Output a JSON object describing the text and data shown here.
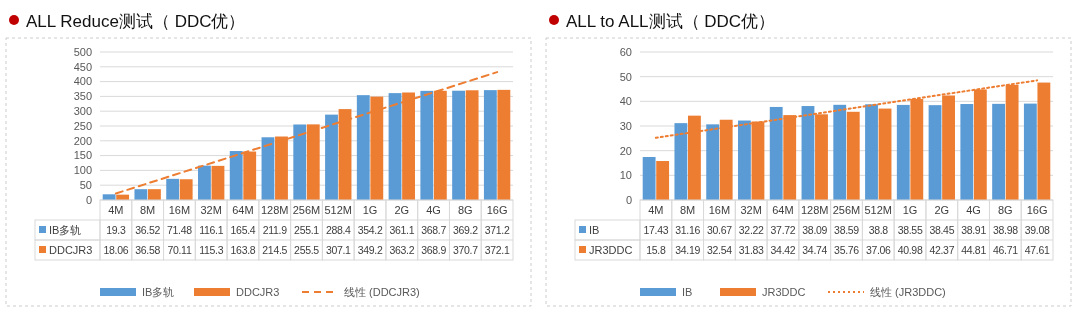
{
  "chart_data": [
    {
      "type": "bar",
      "title": "ALL Reduce测试（ DDC优）",
      "categories": [
        "4M",
        "8M",
        "16M",
        "32M",
        "64M",
        "128M",
        "256M",
        "512M",
        "1G",
        "2G",
        "4G",
        "8G",
        "16G"
      ],
      "series": [
        {
          "name": "IB多轨",
          "color": "#5b9bd5",
          "values": [
            19.3,
            36.52,
            71.48,
            116.1,
            165.4,
            211.9,
            255.1,
            288.4,
            354.2,
            361.1,
            368.7,
            369.2,
            371.2
          ],
          "value_labels": [
            "19.3",
            "36.52",
            "71.48",
            "116.1",
            "165.4",
            "211.9",
            "255.1",
            "288.4",
            "354.2",
            "361.1",
            "368.7",
            "369.2",
            "371.2"
          ]
        },
        {
          "name": "DDCJR3",
          "color": "#ed7d31",
          "values": [
            18.06,
            36.58,
            70.11,
            115.3,
            163.8,
            214.5,
            255.5,
            307.1,
            349.2,
            363.2,
            368.9,
            370.7,
            372.1
          ],
          "value_labels": [
            "18.06",
            "36.58",
            "70.11",
            "115.3",
            "163.8",
            "214.5",
            "255.5",
            "307.1",
            "349.2",
            "363.2",
            "368.9",
            "370.7",
            "372.1"
          ]
        },
        {
          "name": "线性 (DDCJR3)",
          "type": "line",
          "color": "#ed7d31",
          "line_style": "dashed",
          "x": [
            "4M",
            "16G"
          ],
          "values": [
            22,
            432
          ]
        }
      ],
      "ylim": [
        0,
        500
      ],
      "yticks": [
        0,
        50,
        100,
        150,
        200,
        250,
        300,
        350,
        400,
        450,
        500
      ],
      "grid": "y",
      "legend": "bottom"
    },
    {
      "type": "bar",
      "title": "ALL to ALL测试（ DDC优）",
      "categories": [
        "4M",
        "8M",
        "16M",
        "32M",
        "64M",
        "128M",
        "256M",
        "512M",
        "1G",
        "2G",
        "4G",
        "8G",
        "16G"
      ],
      "series": [
        {
          "name": "IB",
          "color": "#5b9bd5",
          "values": [
            17.43,
            31.16,
            30.67,
            32.22,
            37.72,
            38.09,
            38.59,
            38.8,
            38.55,
            38.45,
            38.91,
            38.98,
            39.08
          ],
          "value_labels": [
            "17.43",
            "31.16",
            "30.67",
            "32.22",
            "37.72",
            "38.09",
            "38.59",
            "38.8",
            "38.55",
            "38.45",
            "38.91",
            "38.98",
            "39.08"
          ]
        },
        {
          "name": "JR3DDC",
          "color": "#ed7d31",
          "values": [
            15.8,
            34.19,
            32.54,
            31.83,
            34.42,
            34.74,
            35.76,
            37.06,
            40.98,
            42.37,
            44.81,
            46.71,
            47.61
          ],
          "value_labels": [
            "15.8",
            "34.19",
            "32.54",
            "31.83",
            "34.42",
            "34.74",
            "35.76",
            "37.06",
            "40.98",
            "42.37",
            "44.81",
            "46.71",
            "47.61"
          ]
        },
        {
          "name": "线性 (JR3DDC)",
          "type": "line",
          "color": "#ed7d31",
          "line_style": "dotted",
          "x": [
            "4M",
            "16G"
          ],
          "values": [
            25.2,
            48.5
          ]
        }
      ],
      "ylim": [
        0,
        60
      ],
      "yticks": [
        0,
        10,
        20,
        30,
        40,
        50,
        60
      ],
      "grid": "y",
      "legend": "bottom"
    }
  ]
}
